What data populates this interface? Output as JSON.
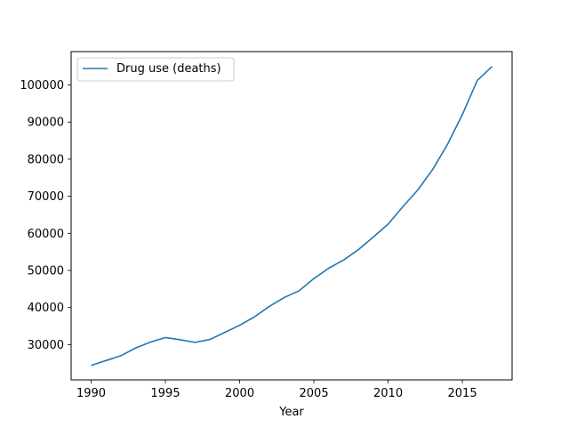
{
  "chart_data": {
    "type": "line",
    "title": "",
    "xlabel": "Year",
    "ylabel": "",
    "xlim": [
      1988.65,
      2018.35
    ],
    "ylim": [
      20500,
      109000
    ],
    "xticks": [
      1990,
      1995,
      2000,
      2005,
      2010,
      2015
    ],
    "yticks": [
      30000,
      40000,
      50000,
      60000,
      70000,
      80000,
      90000,
      100000
    ],
    "grid": false,
    "legend": "top-left",
    "series": [
      {
        "name": "Drug use (deaths)",
        "color": "#1f77b4",
        "x": [
          1990,
          1991,
          1992,
          1993,
          1994,
          1995,
          1996,
          1997,
          1998,
          1999,
          2000,
          2001,
          2002,
          2003,
          2004,
          2005,
          2006,
          2007,
          2008,
          2009,
          2010,
          2011,
          2012,
          2013,
          2014,
          2015,
          2016,
          2017
        ],
        "y": [
          24400,
          25700,
          27000,
          29100,
          30700,
          31900,
          31300,
          30600,
          31400,
          33300,
          35200,
          37500,
          40300,
          42700,
          44500,
          47800,
          50600,
          52800,
          55600,
          59000,
          62500,
          67200,
          71700,
          77200,
          84000,
          92000,
          101200,
          105000
        ]
      }
    ]
  }
}
